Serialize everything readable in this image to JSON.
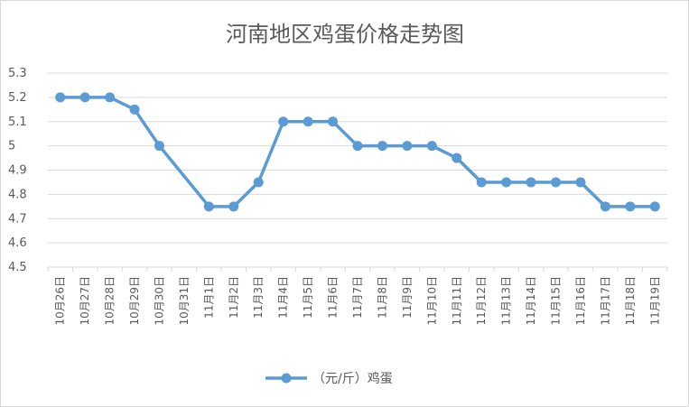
{
  "chart_data": {
    "type": "line",
    "title": "河南地区鸡蛋价格走势图",
    "xlabel": "",
    "ylabel": "",
    "categories": [
      "10月26日",
      "10月27日",
      "10月28日",
      "10月29日",
      "10月30日",
      "10月31日",
      "11月1日",
      "11月2日",
      "11月3日",
      "11月4日",
      "11月5日",
      "11月6日",
      "11月7日",
      "11月8日",
      "11月9日",
      "11月10日",
      "11月11日",
      "11月12日",
      "11月13日",
      "11月14日",
      "11月15日",
      "11月16日",
      "11月17日",
      "11月18日",
      "11月19日"
    ],
    "series": [
      {
        "name": "（元/斤）鸡蛋",
        "values": [
          5.2,
          5.2,
          5.2,
          5.15,
          5.0,
          null,
          4.75,
          4.75,
          4.85,
          5.1,
          5.1,
          5.1,
          5.0,
          5.0,
          5.0,
          5.0,
          4.95,
          4.85,
          4.85,
          4.85,
          4.85,
          4.85,
          4.75,
          4.75,
          4.75
        ]
      }
    ],
    "ylim": [
      4.5,
      5.3
    ],
    "yticks": [
      "4.5",
      "4.6",
      "4.7",
      "4.8",
      "4.9",
      "5",
      "5.1",
      "5.2",
      "5.3"
    ],
    "grid": true,
    "legend_position": "bottom",
    "line_color": "#5b9bd5",
    "gridline_color": "#d9d9d9"
  }
}
